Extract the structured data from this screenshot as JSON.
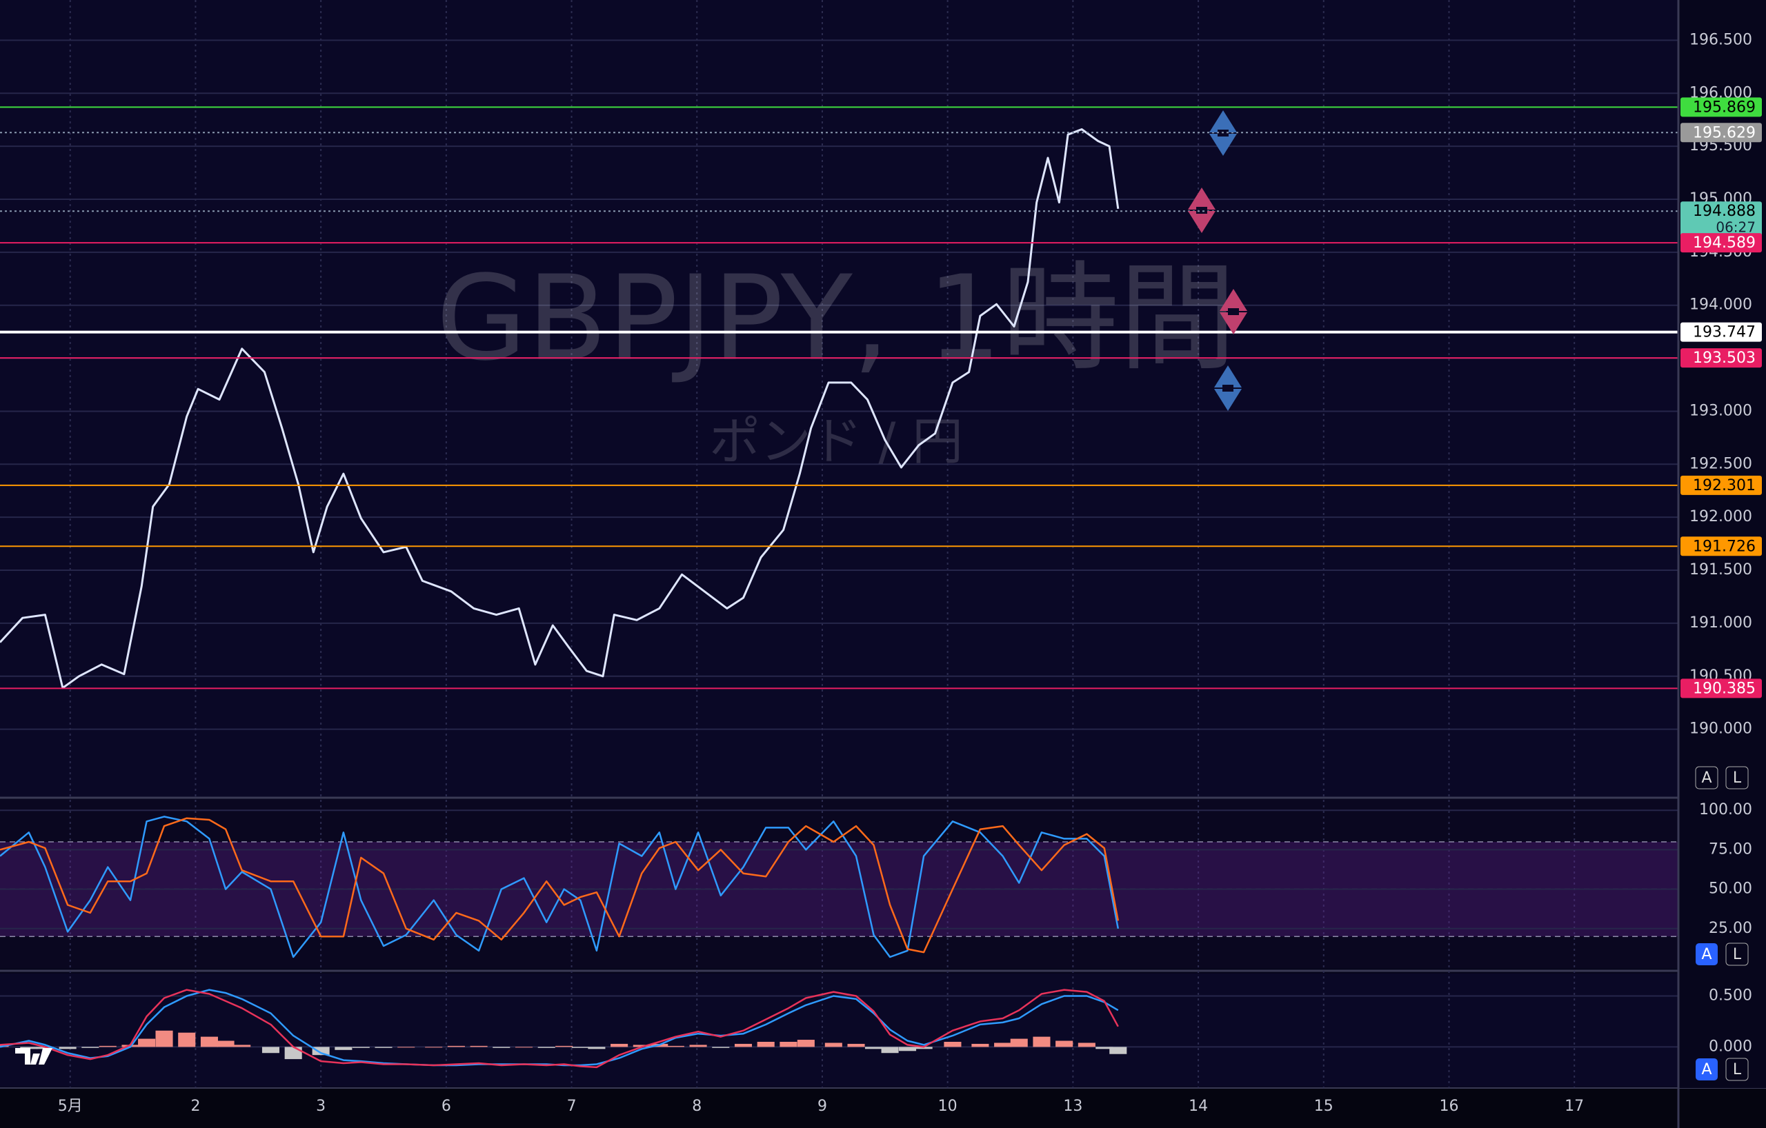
{
  "watermark": {
    "symbol": "GBPJPY, 1時間",
    "name": "ポンド / 円"
  },
  "buttons": [
    "A",
    "L"
  ],
  "chart_data": [
    {
      "type": "line",
      "color": "#dfe6ff",
      "xlim": [
        -0.56,
        12.83
      ],
      "ylim": [
        189.36,
        196.88
      ],
      "grid": true,
      "countdown": "06:27",
      "x": [
        -0.56,
        -0.38,
        -0.2,
        -0.06,
        0.07,
        0.25,
        0.43,
        0.57,
        0.66,
        0.79,
        0.93,
        1.02,
        1.19,
        1.37,
        1.55,
        1.69,
        1.82,
        1.94,
        2.05,
        2.18,
        2.32,
        2.5,
        2.68,
        2.81,
        3.04,
        3.22,
        3.4,
        3.58,
        3.71,
        3.85,
        3.98,
        4.12,
        4.25,
        4.34,
        4.52,
        4.7,
        4.88,
        5.06,
        5.24,
        5.37,
        5.51,
        5.69,
        5.82,
        5.91,
        6.05,
        6.23,
        6.36,
        6.5,
        6.63,
        6.77,
        6.9,
        7.04,
        7.17,
        7.26,
        7.39,
        7.53,
        7.64,
        7.71,
        7.8,
        7.89,
        7.96,
        8.07,
        8.2,
        8.29,
        8.36
      ],
      "values": [
        190.82,
        191.05,
        191.08,
        190.39,
        190.5,
        190.61,
        190.52,
        191.35,
        192.1,
        192.31,
        192.95,
        193.21,
        193.11,
        193.59,
        193.37,
        192.84,
        192.31,
        191.67,
        192.1,
        192.41,
        191.99,
        191.67,
        191.72,
        191.4,
        191.3,
        191.14,
        191.08,
        191.14,
        190.61,
        190.98,
        190.77,
        190.55,
        190.5,
        191.08,
        191.03,
        191.14,
        191.46,
        191.3,
        191.14,
        191.24,
        191.62,
        191.88,
        192.41,
        192.84,
        193.27,
        193.27,
        193.11,
        192.73,
        192.47,
        192.68,
        192.79,
        193.27,
        193.37,
        193.9,
        194.01,
        193.8,
        194.22,
        194.97,
        195.39,
        194.97,
        195.61,
        195.66,
        195.55,
        195.5,
        194.91
      ],
      "xticks": [
        {
          "value": 0,
          "label": "5月"
        },
        {
          "value": 1,
          "label": "2"
        },
        {
          "value": 2,
          "label": "3"
        },
        {
          "value": 3,
          "label": "6"
        },
        {
          "value": 4,
          "label": "7"
        },
        {
          "value": 5,
          "label": "8"
        },
        {
          "value": 6,
          "label": "9"
        },
        {
          "value": 7,
          "label": "10"
        },
        {
          "value": 8,
          "label": "13"
        },
        {
          "value": 9,
          "label": "14"
        },
        {
          "value": 10,
          "label": "15"
        },
        {
          "value": 11,
          "label": "16"
        },
        {
          "value": 12,
          "label": "17"
        }
      ],
      "yticks": [
        {
          "value": 190,
          "label": "190.000"
        },
        {
          "value": 190.5,
          "label": "190.500"
        },
        {
          "value": 191,
          "label": "191.000"
        },
        {
          "value": 191.5,
          "label": "191.500"
        },
        {
          "value": 192,
          "label": "192.000"
        },
        {
          "value": 192.5,
          "label": "192.500"
        },
        {
          "value": 193,
          "label": "193.000"
        },
        {
          "value": 193.5,
          "label": "193.500"
        },
        {
          "value": 194,
          "label": "194.000"
        },
        {
          "value": 194.5,
          "label": "194.500"
        },
        {
          "value": 195,
          "label": "195.000"
        },
        {
          "value": 195.5,
          "label": "195.500"
        },
        {
          "value": 196,
          "label": "196.000"
        },
        {
          "value": 196.5,
          "label": "196.500"
        }
      ],
      "levels": [
        {
          "value": 195.869,
          "color": "#3fdc3f"
        },
        {
          "value": 195.629,
          "color": "#9a9a9a"
        },
        {
          "value": 194.888,
          "color": "#5fc9b4"
        },
        {
          "value": 194.589,
          "color": "#e91e63"
        },
        {
          "value": 193.747,
          "color": "#ffffff"
        },
        {
          "value": 193.503,
          "color": "#e91e63"
        },
        {
          "value": 192.301,
          "color": "#ff9800"
        },
        {
          "value": 191.726,
          "color": "#ff9800"
        },
        {
          "value": 190.385,
          "color": "#e91e63"
        }
      ]
    },
    {
      "type": "stochastic",
      "xlim": [
        -0.56,
        12.83
      ],
      "ylim": [
        0,
        107.1
      ],
      "dashed": [
        20,
        50,
        80
      ],
      "yticks": [
        {
          "value": 25,
          "label": "25.00"
        },
        {
          "value": 50,
          "label": "50.00"
        },
        {
          "value": 75,
          "label": "75.00"
        },
        {
          "value": 100,
          "label": "100.00"
        }
      ],
      "x": [
        -0.56,
        -0.33,
        -0.2,
        -0.02,
        0.16,
        0.3,
        0.48,
        0.61,
        0.75,
        0.93,
        1.11,
        1.24,
        1.37,
        1.6,
        1.78,
        2.0,
        2.18,
        2.32,
        2.5,
        2.68,
        2.9,
        3.08,
        3.26,
        3.44,
        3.62,
        3.8,
        3.94,
        4.07,
        4.2,
        4.38,
        4.56,
        4.7,
        4.83,
        5.01,
        5.19,
        5.37,
        5.55,
        5.73,
        5.87,
        6.09,
        6.27,
        6.41,
        6.54,
        6.68,
        6.81,
        7.04,
        7.26,
        7.44,
        7.57,
        7.75,
        7.93,
        8.11,
        8.25,
        8.36
      ],
      "series": [
        {
          "color": "#2f9bff",
          "values": [
            71,
            86,
            64,
            23,
            43,
            64,
            43,
            93,
            96,
            93,
            82,
            50,
            61,
            50,
            7,
            29,
            86,
            43,
            14,
            21,
            43,
            21,
            11,
            50,
            57,
            29,
            50,
            43,
            11,
            79,
            71,
            86,
            50,
            86,
            46,
            64,
            89,
            89,
            75,
            93,
            71,
            21,
            7,
            11,
            71,
            93,
            86,
            71,
            54,
            86,
            82,
            82,
            71,
            25
          ]
        },
        {
          "color": "#ff6a1a",
          "values": [
            75,
            80,
            76,
            40,
            35,
            55,
            55,
            60,
            90,
            95,
            94,
            88,
            62,
            55,
            55,
            20,
            20,
            70,
            60,
            25,
            18,
            35,
            30,
            18,
            35,
            55,
            40,
            45,
            48,
            20,
            60,
            76,
            80,
            62,
            75,
            60,
            58,
            80,
            90,
            80,
            90,
            78,
            40,
            12,
            10,
            50,
            88,
            90,
            78,
            62,
            78,
            85,
            76,
            30
          ]
        }
      ]
    },
    {
      "type": "macd",
      "xlim": [
        -0.56,
        12.83
      ],
      "ylim": [
        -0.39,
        0.72
      ],
      "yticks": [
        {
          "value": 0,
          "label": "0.000"
        },
        {
          "value": 0.5,
          "label": "0.500"
        }
      ],
      "x": [
        -0.56,
        -0.33,
        -0.2,
        -0.02,
        0.16,
        0.3,
        0.48,
        0.61,
        0.75,
        0.93,
        1.11,
        1.24,
        1.37,
        1.6,
        1.78,
        2.0,
        2.18,
        2.32,
        2.5,
        2.68,
        2.9,
        3.08,
        3.26,
        3.44,
        3.62,
        3.8,
        3.94,
        4.07,
        4.2,
        4.38,
        4.56,
        4.7,
        4.83,
        5.01,
        5.19,
        5.37,
        5.55,
        5.73,
        5.87,
        6.09,
        6.27,
        6.41,
        6.54,
        6.68,
        6.81,
        7.04,
        7.26,
        7.44,
        7.57,
        7.75,
        7.93,
        8.11,
        8.25,
        8.36
      ],
      "histogram": [
        0.02,
        -0.02,
        -0.02,
        -0.02,
        -0.01,
        0.01,
        0.02,
        0.08,
        0.16,
        0.14,
        0.1,
        0.06,
        0.02,
        -0.06,
        -0.12,
        -0.08,
        -0.03,
        -0.01,
        -0.01,
        0,
        0,
        0.01,
        0.01,
        -0.01,
        0,
        -0.01,
        0.01,
        -0.01,
        -0.02,
        0.03,
        0.02,
        0.03,
        0.01,
        0.02,
        -0.01,
        0.03,
        0.05,
        0.05,
        0.07,
        0.04,
        0.03,
        -0.02,
        -0.06,
        -0.04,
        -0.02,
        0.05,
        0.03,
        0.04,
        0.08,
        0.1,
        0.06,
        0.04,
        -0.02,
        -0.07
      ],
      "histogram_colors": [
        "#f28b82",
        "#c8c8c8"
      ],
      "series": [
        {
          "color": "#2f9bff",
          "values": [
            0,
            0.06,
            0.02,
            -0.06,
            -0.11,
            -0.09,
            0,
            0.22,
            0.39,
            0.5,
            0.56,
            0.53,
            0.47,
            0.33,
            0.11,
            -0.06,
            -0.13,
            -0.14,
            -0.16,
            -0.17,
            -0.18,
            -0.18,
            -0.17,
            -0.17,
            -0.17,
            -0.17,
            -0.18,
            -0.18,
            -0.17,
            -0.11,
            -0.02,
            0.02,
            0.09,
            0.13,
            0.11,
            0.13,
            0.22,
            0.33,
            0.41,
            0.5,
            0.47,
            0.33,
            0.17,
            0.06,
            0.02,
            0.11,
            0.22,
            0.24,
            0.28,
            0.42,
            0.5,
            0.5,
            0.44,
            0.36
          ]
        },
        {
          "color": "#e8335a",
          "values": [
            0.02,
            0.04,
            0,
            -0.08,
            -0.12,
            -0.08,
            0.02,
            0.3,
            0.48,
            0.56,
            0.52,
            0.45,
            0.38,
            0.22,
            0,
            -0.14,
            -0.16,
            -0.15,
            -0.17,
            -0.17,
            -0.18,
            -0.17,
            -0.16,
            -0.18,
            -0.17,
            -0.18,
            -0.17,
            -0.19,
            -0.2,
            -0.08,
            0,
            0.05,
            0.1,
            0.15,
            0.1,
            0.16,
            0.27,
            0.38,
            0.48,
            0.54,
            0.5,
            0.35,
            0.12,
            0.02,
            0,
            0.16,
            0.25,
            0.28,
            0.36,
            0.52,
            0.56,
            0.54,
            0.45,
            0.2
          ]
        }
      ]
    }
  ]
}
